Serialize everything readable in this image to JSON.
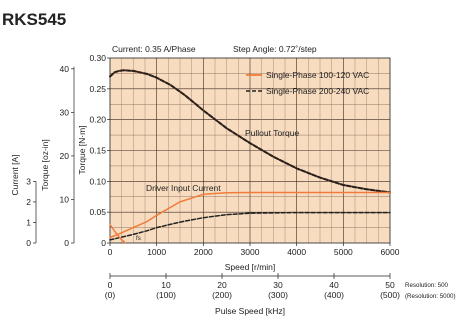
{
  "model": "RKS545",
  "chart_data": {
    "type": "line",
    "header": {
      "current": "Current: 0.35 A/Phase",
      "step_angle": "Step Angle: 0.72˚/step"
    },
    "x": {
      "label": "Speed [r/min]",
      "ticks": [
        "0",
        "1000",
        "2000",
        "3000",
        "4000",
        "5000",
        "6000"
      ],
      "lim": [
        0,
        6000
      ]
    },
    "y": {
      "label": "Torque [N·m]",
      "ticks": [
        "0",
        "0.05",
        "0.10",
        "0.15",
        "0.20",
        "0.25",
        "0.30"
      ],
      "lim": [
        0,
        0.3
      ]
    },
    "y2": {
      "label": "Torque [oz-in]",
      "ticks": [
        "0",
        "10",
        "20",
        "30",
        "40"
      ],
      "values": [
        0,
        10,
        20,
        30,
        40
      ],
      "factor": 141.6
    },
    "y3": {
      "label": "Current [A]",
      "ticks": [
        "0",
        "1",
        "2",
        "3"
      ],
      "values": [
        0,
        1,
        2,
        3
      ],
      "factor": 0.0333
    },
    "x2": {
      "label": "Pulse Speed [kHz]",
      "ticks": [
        "0",
        "10",
        "20",
        "30",
        "40",
        "50"
      ],
      "ticks_paren": [
        "(0)",
        "(100)",
        "(200)",
        "(300)",
        "(400)",
        "(500)"
      ],
      "resolution": "Resolution: 500",
      "resolution_paren": "(Resolution: 5000)"
    },
    "legend": [
      {
        "label": "Single-Phase 100-120 VAC",
        "color": "#f07c3a",
        "style": "solid"
      },
      {
        "label": "Single-Phase 200-240 VAC",
        "color": "#222222",
        "style": "dashed"
      }
    ],
    "annotations": {
      "pullout": "Pullout Torque",
      "driver_current": "Driver Input Current",
      "fs": "fs"
    },
    "series": [
      {
        "name": "Single-Phase 100-120 VAC",
        "role": "pullout",
        "x": [
          0,
          100,
          200,
          300,
          500,
          800,
          1000,
          1300,
          1600,
          2000,
          2500,
          3000,
          3500,
          4000,
          4500,
          5000,
          5500,
          6000
        ],
        "y": [
          0.27,
          0.277,
          0.279,
          0.28,
          0.279,
          0.274,
          0.268,
          0.256,
          0.24,
          0.215,
          0.186,
          0.162,
          0.14,
          0.121,
          0.106,
          0.094,
          0.087,
          0.082
        ]
      },
      {
        "name": "Single-Phase 200-240 VAC",
        "role": "pullout",
        "x": [
          0,
          100,
          200,
          300,
          500,
          800,
          1000,
          1300,
          1600,
          2000,
          2500,
          3000,
          3500,
          4000,
          4500,
          5000,
          5500,
          6000
        ],
        "y": [
          0.27,
          0.277,
          0.279,
          0.28,
          0.279,
          0.274,
          0.268,
          0.256,
          0.24,
          0.215,
          0.186,
          0.162,
          0.14,
          0.121,
          0.106,
          0.094,
          0.087,
          0.082
        ]
      },
      {
        "name": "Single-Phase 100-120 VAC",
        "role": "current",
        "unit": "A",
        "x": [
          0,
          200,
          500,
          800,
          1000,
          1500,
          2000,
          2500,
          3000,
          4000,
          5000,
          6000
        ],
        "y": [
          0.27,
          0.45,
          0.75,
          1.05,
          1.35,
          2.0,
          2.37,
          2.45,
          2.46,
          2.46,
          2.46,
          2.46
        ]
      },
      {
        "name": "Single-Phase 200-240 VAC",
        "role": "current",
        "unit": "A",
        "x": [
          0,
          200,
          500,
          800,
          1000,
          1500,
          2000,
          2500,
          3000,
          4000,
          5000,
          6000
        ],
        "y": [
          0.15,
          0.26,
          0.42,
          0.6,
          0.75,
          1.02,
          1.23,
          1.38,
          1.45,
          1.48,
          1.48,
          1.48
        ]
      },
      {
        "name": "Single-Phase 100-120 VAC",
        "role": "fs",
        "x": [
          0,
          120,
          240,
          330
        ],
        "y": [
          0.03,
          0.017,
          0.006,
          0.0
        ]
      }
    ]
  }
}
